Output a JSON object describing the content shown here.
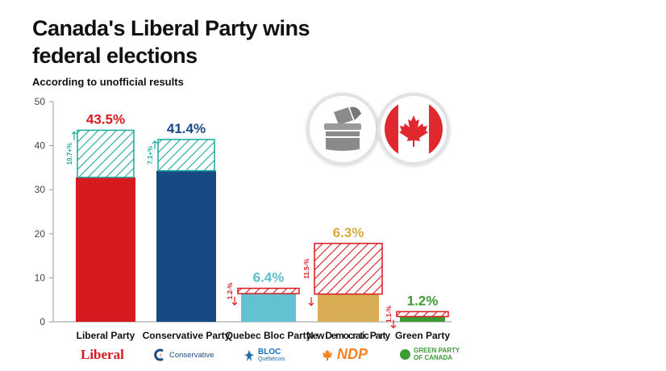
{
  "header": {
    "title": "Canada's Liberal Party wins federal elections",
    "subtitle": "According to unofficial results"
  },
  "chart_data": {
    "type": "bar",
    "title": "Canada's Liberal Party wins federal elections",
    "subtitle": "According to unofficial results",
    "ylim": [
      0,
      50
    ],
    "yticks": [
      0,
      10,
      20,
      30,
      40,
      50
    ],
    "grid": false,
    "categories": [
      "Liberal Party",
      "Conservative Party",
      "Quebec Bloc Party",
      "New Democratic Party",
      "Green Party"
    ],
    "values": [
      43.5,
      41.4,
      6.4,
      6.3,
      1.2
    ],
    "value_labels": [
      "43.5%",
      "41.4%",
      "6.4%",
      "6.3%",
      "1.2%"
    ],
    "change": [
      10.7,
      7.1,
      -1.2,
      -11.5,
      -1.1
    ],
    "change_labels": [
      "10.7+%",
      "7.1+%",
      "1.2-%",
      "11.5-%",
      "1.1-%"
    ],
    "colors": [
      "#d71920",
      "#174a85",
      "#62c2cf",
      "#d9ad54",
      "#3d9b35"
    ],
    "label_colors": [
      "#d71920",
      "#174a85",
      "#5bbfcd",
      "#d9a940",
      "#3d9b35"
    ],
    "hatch_colors": [
      "#1aa89c",
      "#1aa89c",
      "#d71920",
      "#d71920",
      "#d71920"
    ]
  },
  "logos": {
    "liberal": "Liberal",
    "conservative": "Conservative",
    "bloc_line1": "BLOC",
    "bloc_line2": "Québécois",
    "ndp": "NDP",
    "green_line1": "GREEN PARTY",
    "green_line2": "OF CANADA"
  },
  "icons": {
    "ballot": "ballot-box-icon",
    "flag": "canada-flag-icon"
  }
}
